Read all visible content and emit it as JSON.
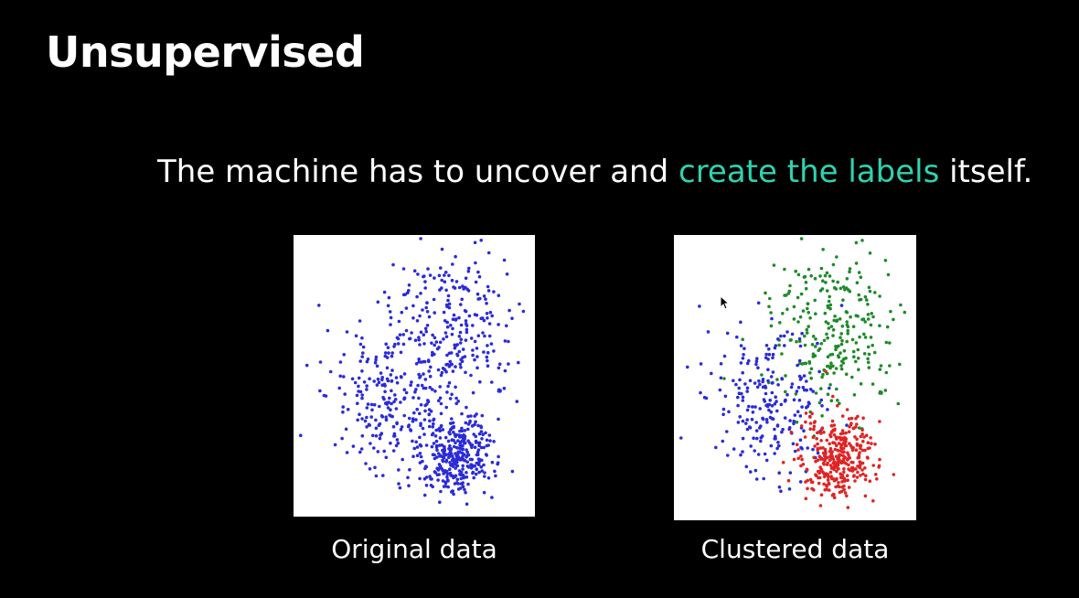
{
  "slide": {
    "title": "Unsupervised",
    "subtitle_before": "The machine has to uncover and ",
    "subtitle_highlight": "create the labels",
    "subtitle_after": " itself."
  },
  "colors": {
    "background": "#000000",
    "text": "#ffffff",
    "highlight": "#2ed3b0",
    "original_points": "#2b2bd9",
    "cluster_blue": "#2b2bd9",
    "cluster_green": "#1f8a2a",
    "cluster_red": "#e02424"
  },
  "figures": {
    "original_caption": "Original data",
    "clustered_caption": "Clustered data"
  },
  "chart_data": [
    {
      "type": "scatter",
      "caption": "Original data",
      "groups": [
        {
          "color": "#2b2bd9",
          "clusters": [
            "upper",
            "left",
            "lower"
          ]
        }
      ]
    },
    {
      "type": "scatter",
      "caption": "Clustered data",
      "groups": [
        {
          "color": "#1f8a2a",
          "clusters": [
            "upper"
          ]
        },
        {
          "color": "#2b2bd9",
          "clusters": [
            "left"
          ]
        },
        {
          "color": "#e02424",
          "clusters": [
            "lower"
          ]
        }
      ]
    }
  ],
  "icons": {
    "cursor": "mouse-pointer-icon"
  }
}
